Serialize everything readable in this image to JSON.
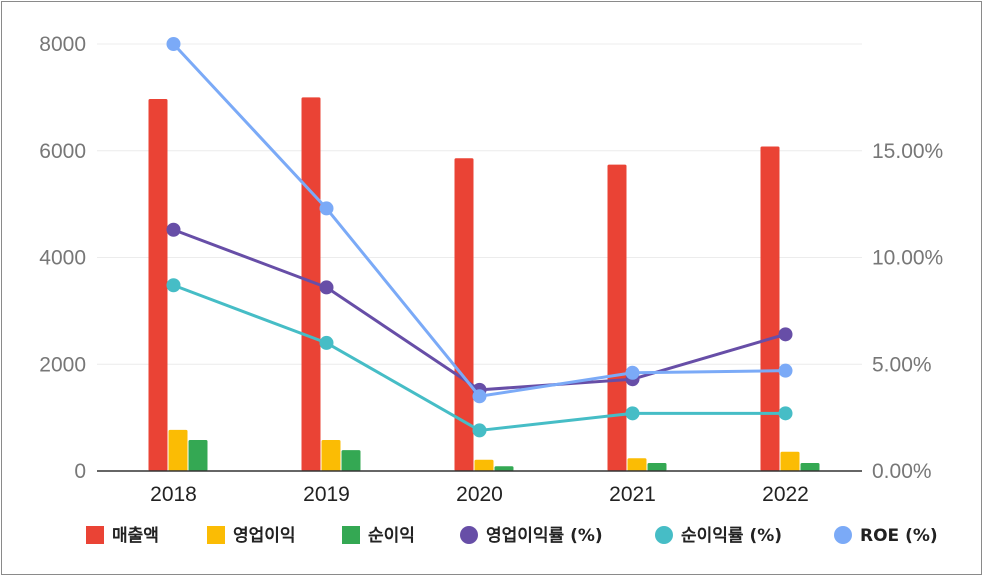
{
  "chart_data": {
    "type": "bar",
    "categories": [
      "2018",
      "2019",
      "2020",
      "2021",
      "2022"
    ],
    "bar_series": [
      {
        "name": "매출액",
        "color": "#ea4335",
        "values": [
          6970,
          7000,
          5860,
          5740,
          6080
        ]
      },
      {
        "name": "영업이익",
        "color": "#fbbc04",
        "values": [
          770,
          580,
          210,
          240,
          360
        ]
      },
      {
        "name": "순이익",
        "color": "#34a853",
        "values": [
          580,
          390,
          90,
          150,
          150
        ]
      }
    ],
    "line_series": [
      {
        "name": "영업이익률 (%)",
        "color": "#674ea7",
        "values": [
          11.3,
          8.6,
          3.8,
          4.3,
          6.4
        ]
      },
      {
        "name": "순이익률 (%)",
        "color": "#46bdc6",
        "values": [
          8.7,
          6.0,
          1.9,
          2.7,
          2.7
        ]
      },
      {
        "name": "ROE (%)",
        "color": "#7baaf7",
        "values": [
          20.0,
          12.3,
          3.5,
          4.6,
          4.7
        ]
      }
    ],
    "y_left": {
      "ticks": [
        "0",
        "2000",
        "4000",
        "6000",
        "8000"
      ],
      "range": [
        0,
        8000
      ]
    },
    "y_right": {
      "ticks": [
        "0.00%",
        "5.00%",
        "10.00%",
        "15.00%"
      ],
      "range": [
        0,
        20
      ]
    },
    "grid": true,
    "legend_position": "bottom"
  }
}
